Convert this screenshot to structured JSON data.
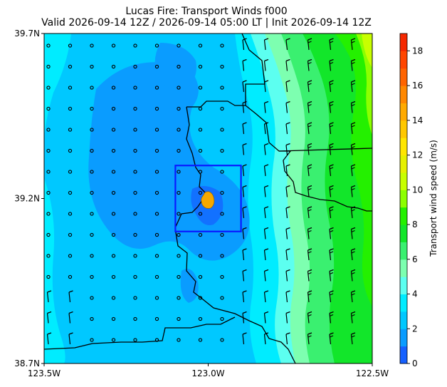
{
  "figure": {
    "title_line1": "Lucas Fire: Transport Winds f000",
    "title_line2": "Valid 2026-09-14 12Z / 2026-09-14 05:00 LT | Init 2026-09-14 12Z"
  },
  "map": {
    "extent": {
      "lon_min": -123.5,
      "lon_max": -122.5,
      "lat_min": 38.7,
      "lat_max": 39.7
    },
    "x_ticks": [
      {
        "lon": -123.5,
        "label": "123.5W"
      },
      {
        "lon": -123.0,
        "label": "123.0W"
      },
      {
        "lon": -122.5,
        "label": "122.5W"
      }
    ],
    "y_ticks": [
      {
        "lat": 39.7,
        "label": "39.7N"
      },
      {
        "lat": 39.2,
        "label": "39.2N"
      },
      {
        "lat": 38.7,
        "label": "38.7N"
      }
    ],
    "fire_name": "Lucas Fire",
    "fire_box": {
      "lon_min": -123.1,
      "lon_max": -122.9,
      "lat_min": 39.1,
      "lat_max": 39.3
    },
    "fire_center": {
      "lon": -122.99,
      "lat": 39.2
    },
    "colors": {
      "fire": "#f5a800",
      "box": "#0a1aff",
      "border": "#000000"
    }
  },
  "colorbar": {
    "label": "Transport wind speed (m/s)",
    "ticks": [
      "0",
      "2",
      "4",
      "6",
      "8",
      "10",
      "12",
      "14",
      "16",
      "18"
    ],
    "min": 0,
    "max": 19,
    "levels": [
      {
        "from": 0,
        "to": 1,
        "color": "#1560ff"
      },
      {
        "from": 1,
        "to": 2,
        "color": "#0a9cff"
      },
      {
        "from": 2,
        "to": 3,
        "color": "#00c8ff"
      },
      {
        "from": 3,
        "to": 4,
        "color": "#00ecff"
      },
      {
        "from": 4,
        "to": 5,
        "color": "#5cfff0"
      },
      {
        "from": 5,
        "to": 6,
        "color": "#7dffb0"
      },
      {
        "from": 6,
        "to": 7,
        "color": "#3af070"
      },
      {
        "from": 7,
        "to": 8,
        "color": "#12e62a"
      },
      {
        "from": 8,
        "to": 9,
        "color": "#24f000"
      },
      {
        "from": 9,
        "to": 10,
        "color": "#8cff00"
      },
      {
        "from": 10,
        "to": 11,
        "color": "#c8ff00"
      },
      {
        "from": 11,
        "to": 12,
        "color": "#e6f000"
      },
      {
        "from": 12,
        "to": 13,
        "color": "#ffe600"
      },
      {
        "from": 13,
        "to": 14,
        "color": "#ffc800"
      },
      {
        "from": 14,
        "to": 15,
        "color": "#ffaa00"
      },
      {
        "from": 15,
        "to": 16,
        "color": "#ff8800"
      },
      {
        "from": 16,
        "to": 17,
        "color": "#ff6400"
      },
      {
        "from": 17,
        "to": 18,
        "color": "#ff4600"
      },
      {
        "from": 18,
        "to": 19,
        "color": "#f52800"
      }
    ]
  }
}
